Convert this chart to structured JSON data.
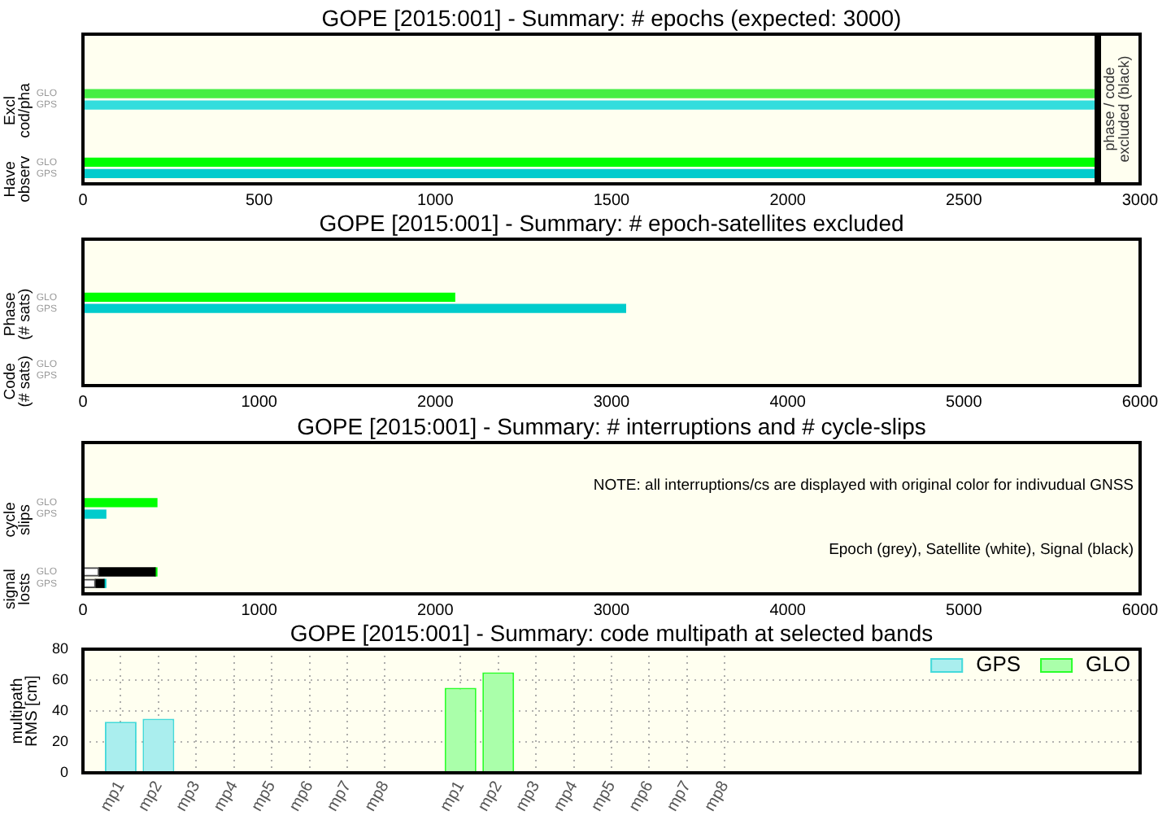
{
  "chart_data": [
    {
      "type": "bar",
      "orientation": "horizontal",
      "title": "GOPE [2015:001] - Summary: # epochs (expected: 3000)",
      "categories": [
        "GLO",
        "GPS",
        null,
        null,
        null,
        null,
        "GLO",
        "GPS"
      ],
      "values": [
        2880,
        2880,
        null,
        null,
        null,
        null,
        2880,
        2880
      ],
      "colors": [
        "#44ee44",
        "#33dddd",
        null,
        null,
        null,
        null,
        "#00ff00",
        "#00cccc"
      ],
      "xlim": [
        0,
        3000
      ],
      "xticks": [
        0,
        500,
        1000,
        1500,
        2000,
        2500,
        3000
      ],
      "annotations": [
        "Excl cod/pha",
        "Have observ"
      ],
      "ref_lines": [
        {
          "axis": "x",
          "value": 2880,
          "label": "phase / code excluded (black)",
          "color": "#000000"
        }
      ]
    },
    {
      "type": "bar",
      "orientation": "horizontal",
      "title": "GOPE [2015:001] - Summary: # epoch-satellites excluded",
      "categories": [
        "GLO",
        "GPS",
        null,
        null,
        null,
        null,
        "GLO",
        "GPS"
      ],
      "values": [
        2110,
        3080,
        null,
        null,
        null,
        null,
        null,
        null
      ],
      "colors": [
        "#00ff00",
        "#00cccc",
        null,
        null,
        null,
        null,
        "#00ff00",
        "#00cccc"
      ],
      "xlim": [
        0,
        6000
      ],
      "xticks": [
        0,
        1000,
        2000,
        3000,
        4000,
        5000,
        6000
      ],
      "annotations": [
        "Phase (# sats)",
        "Code (# sats)"
      ]
    },
    {
      "type": "bar",
      "orientation": "horizontal",
      "stacked": true,
      "title": "GOPE [2015:001] - Summary: # interruptions and # cycle-slips",
      "categories": [
        "GLO",
        "GPS",
        null,
        null,
        null,
        null,
        "GLO",
        "GPS"
      ],
      "series": [
        {
          "color": "#ffffff",
          "values": [
            null,
            null,
            null,
            null,
            null,
            null,
            90,
            70
          ]
        },
        {
          "color": "#000000",
          "values": [
            null,
            null,
            null,
            null,
            null,
            null,
            320,
            50
          ]
        },
        {
          "color": "#00ff00",
          "values": [
            420,
            null,
            null,
            null,
            null,
            null,
            10,
            null
          ]
        },
        {
          "color": "#00cccc",
          "values": [
            null,
            130,
            null,
            null,
            null,
            null,
            null,
            10
          ]
        }
      ],
      "xlim": [
        0,
        6000
      ],
      "xticks": [
        0,
        1000,
        2000,
        3000,
        4000,
        5000,
        6000
      ],
      "annotations": [
        "cycle slips",
        "signal losts",
        "NOTE: all interruptions/cs are displayed with original color for indivudual GNSS",
        "Epoch (grey), Satellite (white), Signal (black)"
      ]
    },
    {
      "type": "bar",
      "title": "GOPE [2015:001] - Summary: code multipath at selected bands",
      "ylabel": "multipath RMS [cm]",
      "categories": [
        "mp1",
        "mp2",
        "mp3",
        "mp4",
        "mp5",
        "mp6",
        "mp7",
        "mp8",
        null,
        "mp1",
        "mp2",
        "mp3",
        "mp4",
        "mp5",
        "mp6",
        "mp7",
        "mp8"
      ],
      "series": [
        {
          "name": "GPS",
          "color": "#aaeeee",
          "values": [
            33,
            35,
            null,
            null,
            null,
            null,
            null,
            null,
            null,
            null,
            null,
            null,
            null,
            null,
            null,
            null,
            null
          ]
        },
        {
          "name": "GLO",
          "color": "#aaffaa",
          "values": [
            null,
            null,
            null,
            null,
            null,
            null,
            null,
            null,
            null,
            55,
            65,
            null,
            null,
            null,
            null,
            null,
            null
          ]
        }
      ],
      "ylim": [
        0,
        80
      ],
      "yticks": [
        0,
        20,
        40,
        60,
        80
      ],
      "grid": true,
      "legend": "top right"
    }
  ]
}
